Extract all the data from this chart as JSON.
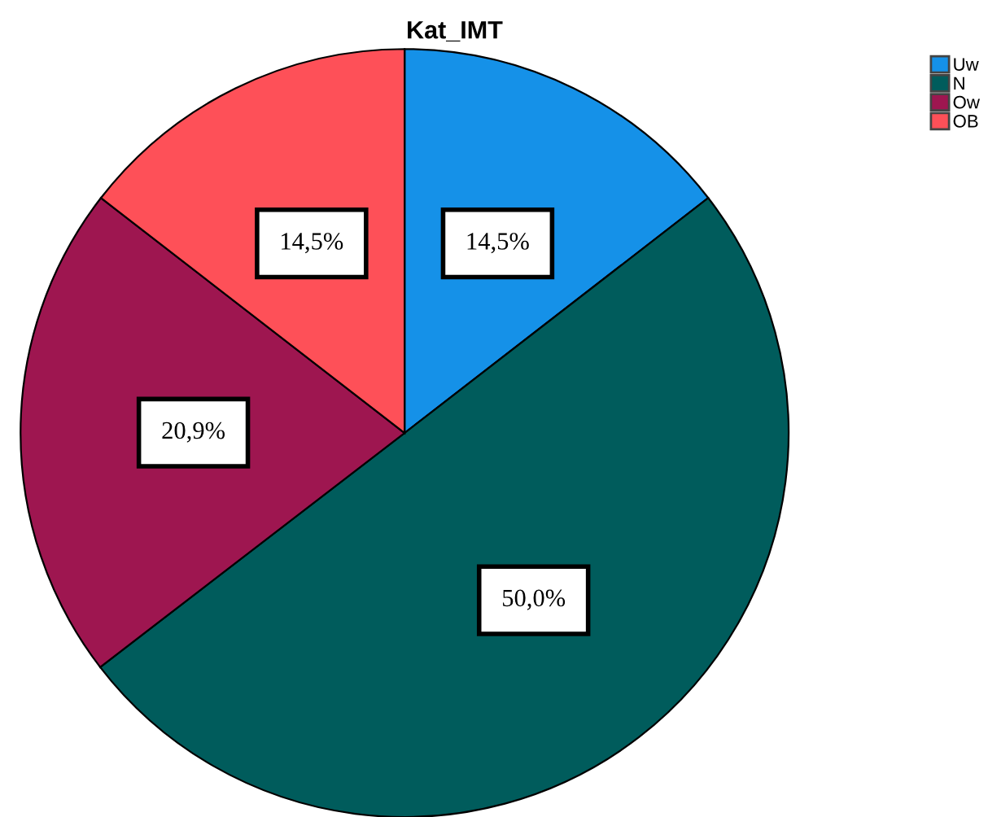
{
  "chart_data": {
    "type": "pie",
    "title": "Kat_IMT",
    "categories": [
      "Uw",
      "N",
      "Ow",
      "OB"
    ],
    "values": [
      14.5,
      50.0,
      20.9,
      14.5
    ],
    "value_labels": [
      "14,5%",
      "50,0%",
      "20,9%",
      "14,5%"
    ],
    "colors": [
      "#1591e8",
      "#005c5c",
      "#9e1650",
      "#fe5058"
    ],
    "legend": "top right"
  }
}
